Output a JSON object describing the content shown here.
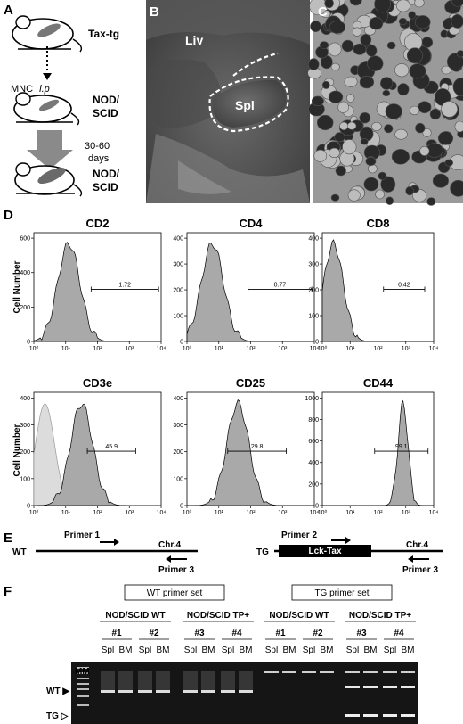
{
  "panel_labels": {
    "A": "A",
    "B": "B",
    "C": "C",
    "D": "D",
    "E": "E",
    "F": "F"
  },
  "panelA": {
    "donor": "Tax-tg",
    "injection": "MNC",
    "injection_route": "i.p",
    "recipient_line1": "NOD/",
    "recipient_line2": "SCID",
    "duration_line1": "30-60",
    "duration_line2": "days",
    "final_line1": "NOD/",
    "final_line2": "SCID"
  },
  "panelB": {
    "liver": "Liv",
    "spleen": "Spl"
  },
  "panelD": {
    "y_label": "Cell Number",
    "x_ticks": [
      "10⁰",
      "10¹",
      "10²",
      "10³",
      "10⁴"
    ],
    "histograms": [
      {
        "title": "CD2",
        "gate": "1.72",
        "ymax": 600,
        "yticks": [
          "0",
          "200",
          "400",
          "600"
        ],
        "peak": 1.1
      },
      {
        "title": "CD4",
        "gate": "0.77",
        "ymax": 400,
        "yticks": [
          "0",
          "100",
          "200",
          "300",
          "400"
        ],
        "peak": 0.8
      },
      {
        "title": "CD8",
        "gate": "0.42",
        "ymax": 400,
        "yticks": [
          "0",
          "100",
          "200",
          "300",
          "400"
        ],
        "peak": 0.4
      },
      {
        "title": "CD3e",
        "gate": "45.9",
        "ymax": 400,
        "yticks": [
          "0",
          "100",
          "200",
          "300",
          "400"
        ],
        "peak": 1.5
      },
      {
        "title": "CD25",
        "gate": "29.8",
        "ymax": 400,
        "yticks": [
          "0",
          "100",
          "200",
          "300",
          "400"
        ],
        "peak": 1.6
      },
      {
        "title": "CD44",
        "gate": "99.1",
        "ymax": 1000,
        "yticks": [
          "0",
          "200",
          "400",
          "600",
          "800",
          "1000"
        ],
        "peak": 2.9
      }
    ]
  },
  "panelE": {
    "wt": "WT",
    "tg": "TG",
    "primer1": "Primer 1",
    "primer2": "Primer 2",
    "primer3": "Primer 3",
    "chr": "Chr.4",
    "transgene": "Lck-Tax"
  },
  "panelF": {
    "wt_set": "WT primer set",
    "tg_set": "TG primer set",
    "group_wt": "NOD/SCID WT",
    "group_tp": "NOD/SCID TP+",
    "mice": [
      "#1",
      "#2",
      "#3",
      "#4"
    ],
    "lanes": [
      "Spl",
      "BM"
    ],
    "marker": "MM",
    "wt_band": "WT ▶",
    "tg_band": "TG ▷"
  }
}
